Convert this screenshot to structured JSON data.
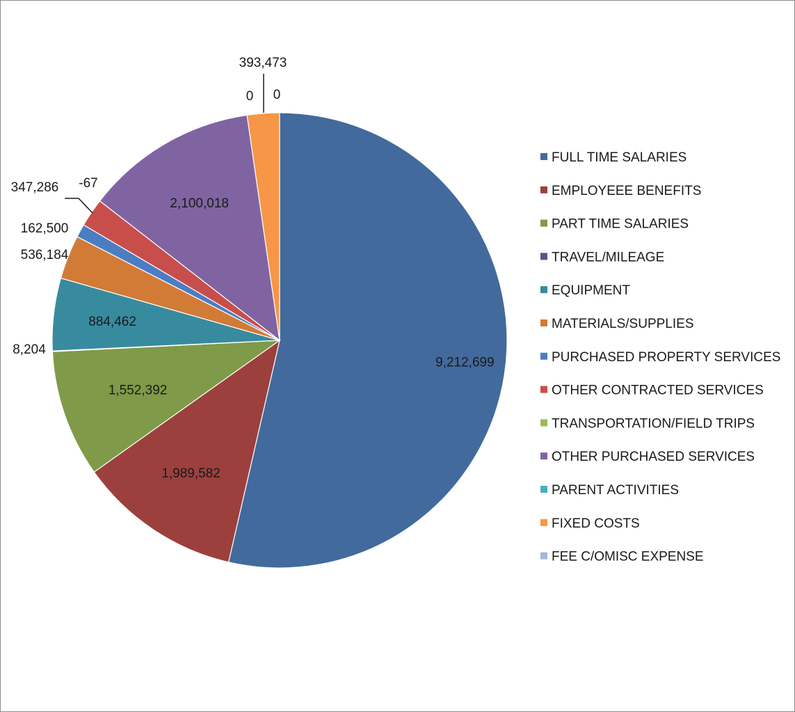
{
  "chart_data": {
    "type": "pie",
    "title": "",
    "legend_position": "right",
    "slices": [
      {
        "name": "FULL TIME SALARIES",
        "value": 9212699,
        "label": "9,212,699",
        "color": "#426a9c"
      },
      {
        "name": "EMPLOYEEE BENEFITS",
        "value": 1989582,
        "label": "1,989,582",
        "color": "#9c403d"
      },
      {
        "name": "PART TIME SALARIES",
        "value": 1552392,
        "label": "1,552,392",
        "color": "#7f9a48"
      },
      {
        "name": "TRAVEL/MILEAGE",
        "value": 8204,
        "label": "8,204",
        "color": "#664e84"
      },
      {
        "name": "EQUIPMENT",
        "value": 884462,
        "label": "884,462",
        "color": "#388b9e"
      },
      {
        "name": "MATERIALS/SUPPLIES",
        "value": 536184,
        "label": "536,184",
        "color": "#d27b37"
      },
      {
        "name": "PURCHASED PROPERTY SERVICES",
        "value": 162500,
        "label": "162,500",
        "color": "#4b7dc2"
      },
      {
        "name": "OTHER CONTRACTED SERVICES",
        "value": 347286,
        "label": "347,286",
        "color": "#c84e4c"
      },
      {
        "name": "TRANSPORTATION/FIELD TRIPS",
        "value": -67,
        "label": "-67",
        "color": "#9bbb59"
      },
      {
        "name": "OTHER PURCHASED SERVICES",
        "value": 2100018,
        "label": "2,100,018",
        "color": "#8064a2"
      },
      {
        "name": "PARENT ACTIVITIES",
        "value": 0,
        "label": "0",
        "color": "#4bacc6"
      },
      {
        "name": "FIXED COSTS",
        "value": 393473,
        "label": "393,473",
        "color": "#f79646"
      },
      {
        "name": "FEE C/OMISC EXPENSE",
        "value": 0,
        "label": "0",
        "color": "#a5b6d9"
      }
    ]
  }
}
